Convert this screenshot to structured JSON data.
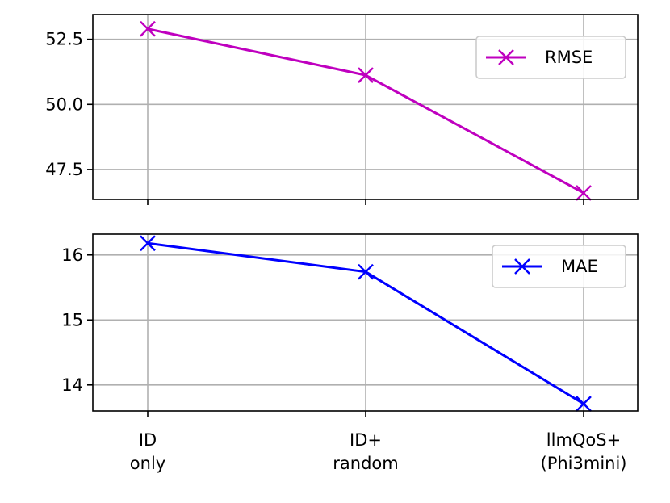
{
  "chart_data": [
    {
      "type": "line",
      "categories": [
        "ID\nonly",
        "ID+\nrandom",
        "llmQoS+\n(Phi3mini)"
      ],
      "series": [
        {
          "name": "RMSE",
          "values": [
            52.9,
            51.12,
            46.6
          ],
          "color": "#bf00bf",
          "marker": "x"
        }
      ],
      "yticks": [
        47.5,
        50.0,
        52.5
      ],
      "ylim": [
        46.35,
        53.45
      ],
      "xlabel": "",
      "ylabel": "",
      "grid": true,
      "legend": "top-right"
    },
    {
      "type": "line",
      "categories": [
        "ID\nonly",
        "ID+\nrandom",
        "llmQoS+\n(Phi3mini)"
      ],
      "series": [
        {
          "name": "MAE",
          "values": [
            16.18,
            15.74,
            13.71
          ],
          "color": "#0000ff",
          "marker": "x"
        }
      ],
      "yticks": [
        14,
        15,
        16
      ],
      "ylim": [
        13.6,
        16.32
      ],
      "xlabel": "",
      "ylabel": "",
      "grid": true,
      "legend": "top-right"
    }
  ],
  "x_tick_labels": [
    [
      "ID",
      "only"
    ],
    [
      "ID+",
      "random"
    ],
    [
      "llmQoS+",
      "(Phi3mini)"
    ]
  ]
}
